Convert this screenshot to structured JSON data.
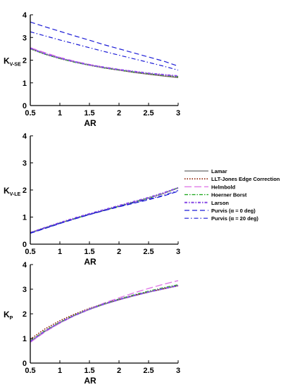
{
  "legend": [
    {
      "name": "Lamar",
      "color": "#808080",
      "dash": "",
      "width": 1.4
    },
    {
      "name": "LLT-Jones Edge Correction",
      "color": "#8b1a00",
      "dash": "1.5 2",
      "width": 1.6
    },
    {
      "name": "Helmbold",
      "color": "#e07ae8",
      "dash": "10 4",
      "width": 1.4
    },
    {
      "name": "Hoerner Borst",
      "color": "#22aa22",
      "dash": "5 2 1.5 2",
      "width": 1.4
    },
    {
      "name": "Larson",
      "color": "#8a4fe6",
      "dash": "4 2 1.5 2",
      "width": 2.2
    },
    {
      "name": "Purvis (α = 0 deg)",
      "color": "#1a1ad6",
      "dash": "7 4",
      "width": 1.2
    },
    {
      "name": "Purvis (α = 20 deg)",
      "color": "#1a1ad6",
      "dash": "6 3 1.5 3",
      "width": 1.2
    }
  ],
  "chart_data": [
    {
      "type": "line",
      "ylabel_main": "K",
      "ylabel_sub": "V-SE",
      "xlabel": "AR",
      "xlim": [
        0.5,
        3
      ],
      "ylim": [
        0,
        4
      ],
      "xticks": [
        "0.5",
        "1",
        "1.5",
        "2",
        "2.5",
        "3"
      ],
      "yticks": [
        "0",
        "1",
        "2",
        "3",
        "4"
      ],
      "x": [
        0.5,
        0.75,
        1.0,
        1.25,
        1.5,
        1.75,
        2.0,
        2.25,
        2.5,
        2.75,
        3.0
      ],
      "series": [
        {
          "name": "Lamar",
          "values": [
            2.52,
            2.27,
            2.08,
            1.92,
            1.78,
            1.66,
            1.56,
            1.46,
            1.38,
            1.3,
            1.23
          ]
        },
        {
          "name": "LLT-Jones Edge Correction",
          "values": [
            2.5,
            2.26,
            2.07,
            1.91,
            1.78,
            1.66,
            1.56,
            1.47,
            1.39,
            1.32,
            1.26
          ]
        },
        {
          "name": "Helmbold",
          "values": [
            2.55,
            2.33,
            2.12,
            1.95,
            1.81,
            1.69,
            1.59,
            1.5,
            1.42,
            1.35,
            1.29
          ]
        },
        {
          "name": "Hoerner Borst",
          "values": [
            2.5,
            2.26,
            2.07,
            1.91,
            1.78,
            1.66,
            1.57,
            1.48,
            1.4,
            1.33,
            1.27
          ]
        },
        {
          "name": "Larson",
          "values": [
            2.52,
            2.28,
            2.09,
            1.93,
            1.79,
            1.68,
            1.58,
            1.5,
            1.42,
            1.36,
            1.3
          ]
        },
        {
          "name": "Purvis (α = 0 deg)",
          "values": [
            3.68,
            3.47,
            3.27,
            3.07,
            2.88,
            2.68,
            2.5,
            2.32,
            2.14,
            1.96,
            1.74
          ]
        },
        {
          "name": "Purvis (α = 20 deg)",
          "values": [
            3.25,
            3.07,
            2.89,
            2.72,
            2.55,
            2.38,
            2.22,
            2.06,
            1.9,
            1.74,
            1.56
          ]
        }
      ]
    },
    {
      "type": "line",
      "ylabel_main": "K",
      "ylabel_sub": "V-LE",
      "xlabel": "AR",
      "xlim": [
        0.5,
        3
      ],
      "ylim": [
        0,
        4
      ],
      "xticks": [
        "0.5",
        "1",
        "1.5",
        "2",
        "2.5",
        "3"
      ],
      "yticks": [
        "0",
        "1",
        "2",
        "3",
        "4"
      ],
      "x": [
        0.5,
        0.75,
        1.0,
        1.25,
        1.5,
        1.75,
        2.0,
        2.25,
        2.5,
        2.75,
        3.0
      ],
      "series": [
        {
          "name": "Lamar",
          "values": [
            0.42,
            0.6,
            0.78,
            0.94,
            1.1,
            1.25,
            1.4,
            1.55,
            1.7,
            1.87,
            2.08
          ]
        },
        {
          "name": "LLT-Jones Edge Correction",
          "values": [
            0.42,
            0.6,
            0.78,
            0.94,
            1.1,
            1.25,
            1.4,
            1.55,
            1.7,
            1.87,
            2.08
          ]
        },
        {
          "name": "Helmbold",
          "values": [
            0.42,
            0.6,
            0.78,
            0.94,
            1.1,
            1.25,
            1.4,
            1.55,
            1.7,
            1.87,
            2.08
          ]
        },
        {
          "name": "Hoerner Borst",
          "values": [
            0.42,
            0.6,
            0.78,
            0.94,
            1.1,
            1.25,
            1.4,
            1.55,
            1.7,
            1.87,
            2.08
          ]
        },
        {
          "name": "Larson",
          "values": [
            0.42,
            0.61,
            0.79,
            0.96,
            1.12,
            1.27,
            1.42,
            1.57,
            1.72,
            1.89,
            2.08
          ]
        },
        {
          "name": "Purvis (α = 0 deg)",
          "values": [
            0.4,
            0.58,
            0.76,
            0.93,
            1.09,
            1.24,
            1.38,
            1.51,
            1.64,
            1.78,
            1.95
          ]
        },
        {
          "name": "Purvis (α = 20 deg)",
          "values": [
            0.41,
            0.59,
            0.77,
            0.94,
            1.1,
            1.25,
            1.39,
            1.53,
            1.66,
            1.8,
            1.98
          ]
        }
      ]
    },
    {
      "type": "line",
      "ylabel_main": "K",
      "ylabel_sub": "P",
      "xlabel": "AR",
      "xlim": [
        0.5,
        3
      ],
      "ylim": [
        0,
        4
      ],
      "xticks": [
        "0.5",
        "1",
        "1.5",
        "2",
        "2.5",
        "3"
      ],
      "yticks": [
        "0",
        "1",
        "2",
        "3",
        "4"
      ],
      "x": [
        0.5,
        0.75,
        1.0,
        1.25,
        1.5,
        1.75,
        2.0,
        2.25,
        2.5,
        2.75,
        3.0
      ],
      "series": [
        {
          "name": "Lamar",
          "values": [
            0.86,
            1.29,
            1.64,
            1.93,
            2.18,
            2.39,
            2.57,
            2.73,
            2.88,
            3.01,
            3.14
          ]
        },
        {
          "name": "LLT-Jones Edge Correction",
          "values": [
            0.97,
            1.39,
            1.72,
            1.99,
            2.22,
            2.42,
            2.59,
            2.75,
            2.89,
            3.02,
            3.14
          ]
        },
        {
          "name": "Helmbold",
          "values": [
            0.84,
            1.27,
            1.62,
            1.93,
            2.2,
            2.44,
            2.65,
            2.85,
            3.03,
            3.2,
            3.35
          ]
        },
        {
          "name": "Hoerner Borst",
          "values": [
            0.9,
            1.32,
            1.66,
            1.95,
            2.2,
            2.41,
            2.6,
            2.77,
            2.92,
            3.06,
            3.18
          ]
        },
        {
          "name": "Larson",
          "values": [
            0.88,
            1.3,
            1.65,
            1.94,
            2.19,
            2.4,
            2.58,
            2.74,
            2.89,
            3.02,
            3.15
          ]
        }
      ]
    }
  ]
}
